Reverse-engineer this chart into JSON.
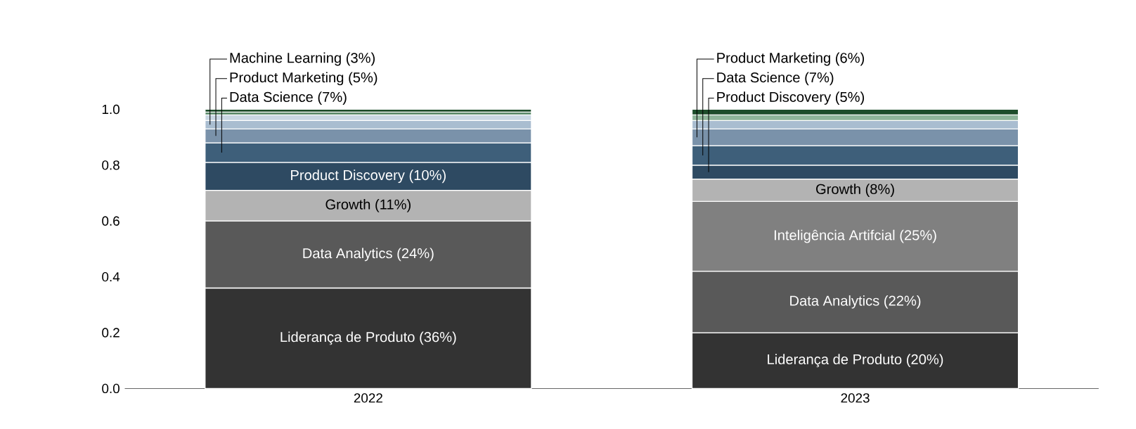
{
  "chart_data": {
    "type": "bar",
    "stacked": true,
    "categories": [
      "2022",
      "2023"
    ],
    "ylim": [
      0,
      1.0
    ],
    "yticks": [
      {
        "value": 0,
        "label": "0.0"
      },
      {
        "value": 0.2,
        "label": "0.2"
      },
      {
        "value": 0.4,
        "label": "0.4"
      },
      {
        "value": 0.6,
        "label": "0.6"
      },
      {
        "value": 0.8,
        "label": "0.8"
      },
      {
        "value": 1.0,
        "label": "1.0"
      }
    ],
    "grid": false,
    "series": [
      {
        "values": [
          0.36,
          0.2
        ],
        "colors": [
          "#333333",
          "#333333"
        ],
        "value_labels": [
          "Liderança de Produto (36%)",
          "Liderança de Produto (20%)"
        ]
      },
      {
        "values": [
          0.24,
          0.22
        ],
        "colors": [
          "#595959",
          "#595959"
        ],
        "value_labels": [
          "Data Analytics (24%)",
          "Data Analytics (22%)"
        ]
      },
      {
        "values": [
          0.11,
          0.25
        ],
        "colors": [
          "#b3b3b3",
          "#808080"
        ],
        "value_labels": [
          "Growth (11%)",
          "Inteligência Artifcial (25%)"
        ]
      },
      {
        "values": [
          0.1,
          0.08
        ],
        "colors": [
          "#2e4a62",
          "#b3b3b3"
        ],
        "value_labels": [
          "Product Discovery (10%)",
          "Growth (8%)"
        ]
      },
      {
        "values": [
          0.07,
          0.05
        ],
        "colors": [
          "#3e5f7a",
          "#2e4a62"
        ],
        "value_labels": [
          "Data Science (7%)",
          "Product Discovery (5%)"
        ]
      },
      {
        "values": [
          0.05,
          0.07
        ],
        "colors": [
          "#7a92aa",
          "#3e5f7a"
        ],
        "value_labels": [
          "Product Marketing (5%)",
          "Data Science (7%)"
        ]
      },
      {
        "values": [
          0.03,
          0.06
        ],
        "colors": [
          "#a9bdd0",
          "#7a92aa"
        ],
        "value_labels": [
          "Machine Learning (3%)",
          "Product Marketing (6%)"
        ]
      },
      {
        "values": [
          0.02,
          0.03
        ],
        "colors": [
          "#c9d7e3",
          "#a9bdd0"
        ],
        "value_labels": [
          null,
          null
        ]
      },
      {
        "values": [
          0.01,
          0.02
        ],
        "colors": [
          "#5a8a6a",
          "#8fb59a"
        ],
        "value_labels": [
          null,
          null
        ]
      },
      {
        "values": [
          0.01,
          0.02
        ],
        "colors": [
          "#1e4d2b",
          "#1e4d2b"
        ],
        "value_labels": [
          null,
          null
        ]
      }
    ]
  }
}
